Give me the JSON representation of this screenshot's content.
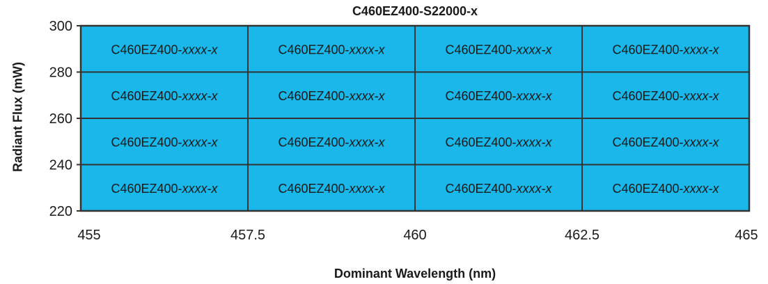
{
  "chart_data": {
    "type": "heatmap",
    "title": "C460EZ400-S22000-x",
    "xlabel": "Dominant Wavelength (nm)",
    "ylabel": "Radiant Flux (mW)",
    "x_ticks": [
      "455",
      "457.5",
      "460",
      "462.5",
      "465"
    ],
    "y_ticks": [
      "300",
      "280",
      "260",
      "240",
      "220"
    ],
    "x_edges": [
      455,
      457.5,
      460,
      462.5,
      465
    ],
    "y_edges": [
      300,
      280,
      260,
      240,
      220
    ],
    "xlim": [
      455,
      465
    ],
    "ylim": [
      220,
      300
    ],
    "cell_fill": "#1ab7ea",
    "cell_border": "#333333",
    "cell_label_prefix": "C460EZ400-",
    "cell_label_suffix": "xxxx-x",
    "rows": 4,
    "cols": 4
  }
}
